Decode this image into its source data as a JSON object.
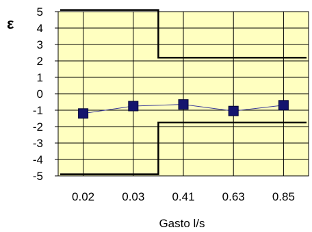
{
  "chart_data": {
    "type": "line",
    "title": "",
    "xlabel": "Gasto l/s",
    "ylabel": "ε",
    "categories": [
      "0.02",
      "0.03",
      "0.41",
      "0.63",
      "0.85"
    ],
    "ylim": [
      -5,
      5
    ],
    "yticks": [
      5,
      4,
      3,
      2,
      1,
      0,
      -1,
      -2,
      -3,
      -4,
      -5
    ],
    "grid": true,
    "legend": "none",
    "series": [
      {
        "name": "",
        "values": [
          -1.2,
          -0.75,
          -0.65,
          -1.05,
          -0.7
        ],
        "color": "#1a1a7a",
        "marker": "square"
      }
    ],
    "limit_lines": [
      {
        "role": "upper",
        "color": "#000000",
        "segments": [
          {
            "from_category": "0.02",
            "to_category": "0.03",
            "value": 5.1
          },
          {
            "from_category": "0.41",
            "to_category": "0.85",
            "value": 2.2
          }
        ]
      },
      {
        "role": "lower",
        "color": "#000000",
        "segments": [
          {
            "from_category": "0.02",
            "to_category": "0.03",
            "value": -4.9
          },
          {
            "from_category": "0.41",
            "to_category": "0.85",
            "value": -1.75
          }
        ]
      }
    ],
    "colors": {
      "plot_background": "#ffffc0",
      "grid": "#000000",
      "series_line": "#3c3c9a",
      "marker": "#14146e"
    }
  }
}
